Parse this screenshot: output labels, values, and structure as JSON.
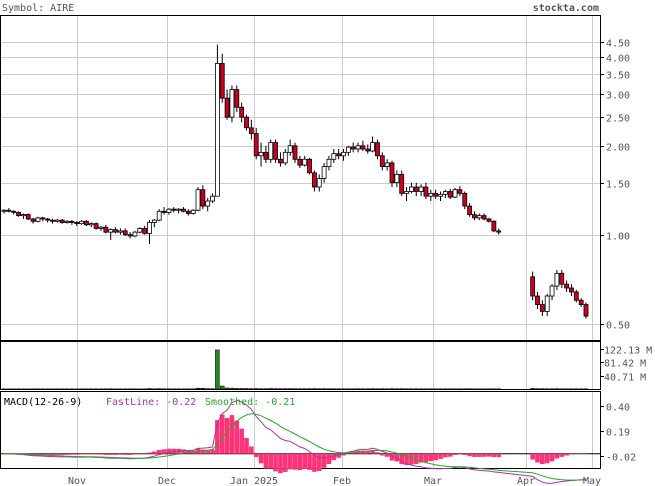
{
  "header": {
    "symbol_label": "Symbol: AIRE",
    "site": "stockta.com"
  },
  "colors": {
    "up_candle": "#ffffff",
    "down_candle": "#cc0022",
    "volume_bar": "#228822",
    "fastline": "#aa33aa",
    "smoothed": "#22aa22",
    "histogram": "#ff3377",
    "grid": "#cccccc",
    "frame": "#000000"
  },
  "chart_data": [
    {
      "type": "candlestick",
      "title": "",
      "scale": "log",
      "ylim": [
        0.44,
        5.5
      ],
      "y_ticks": [
        "4.50",
        "4.00",
        "3.50",
        "3.00",
        "2.50",
        "2.00",
        "1.50",
        "1.00",
        "0.50"
      ],
      "x_ticks": [
        "Nov",
        "Dec",
        "Jan 2025",
        "Feb",
        "Mar",
        "Apr",
        "May"
      ],
      "candles": [
        [
          1.2,
          1.22,
          1.18,
          1.21
        ],
        [
          1.21,
          1.23,
          1.19,
          1.2
        ],
        [
          1.2,
          1.21,
          1.17,
          1.19
        ],
        [
          1.19,
          1.2,
          1.15,
          1.16
        ],
        [
          1.16,
          1.18,
          1.13,
          1.17
        ],
        [
          1.17,
          1.18,
          1.12,
          1.13
        ],
        [
          1.13,
          1.14,
          1.09,
          1.11
        ],
        [
          1.11,
          1.15,
          1.1,
          1.14
        ],
        [
          1.14,
          1.15,
          1.11,
          1.13
        ],
        [
          1.13,
          1.14,
          1.1,
          1.12
        ],
        [
          1.12,
          1.13,
          1.09,
          1.11
        ],
        [
          1.11,
          1.13,
          1.1,
          1.12
        ],
        [
          1.12,
          1.13,
          1.09,
          1.1
        ],
        [
          1.1,
          1.12,
          1.09,
          1.11
        ],
        [
          1.11,
          1.12,
          1.08,
          1.1
        ],
        [
          1.1,
          1.11,
          1.07,
          1.09
        ],
        [
          1.09,
          1.12,
          1.08,
          1.11
        ],
        [
          1.11,
          1.12,
          1.07,
          1.08
        ],
        [
          1.08,
          1.1,
          1.06,
          1.09
        ],
        [
          1.09,
          1.1,
          1.04,
          1.05
        ],
        [
          1.05,
          1.07,
          1.03,
          1.06
        ],
        [
          1.06,
          1.08,
          1.01,
          1.02
        ],
        [
          1.02,
          1.05,
          0.96,
          1.04
        ],
        [
          1.04,
          1.06,
          1.01,
          1.02
        ],
        [
          1.02,
          1.05,
          1.0,
          1.03
        ],
        [
          1.03,
          1.05,
          0.99,
          1.0
        ],
        [
          1.0,
          1.02,
          0.97,
          0.99
        ],
        [
          0.99,
          1.03,
          0.98,
          1.02
        ],
        [
          1.02,
          1.06,
          1.01,
          1.05
        ],
        [
          1.05,
          1.07,
          1.0,
          1.01
        ],
        [
          1.01,
          1.12,
          0.93,
          1.1
        ],
        [
          1.1,
          1.13,
          1.06,
          1.12
        ],
        [
          1.12,
          1.22,
          1.11,
          1.2
        ],
        [
          1.2,
          1.24,
          1.17,
          1.19
        ],
        [
          1.19,
          1.23,
          1.17,
          1.22
        ],
        [
          1.22,
          1.24,
          1.19,
          1.21
        ],
        [
          1.21,
          1.23,
          1.18,
          1.22
        ],
        [
          1.22,
          1.24,
          1.19,
          1.2
        ],
        [
          1.2,
          1.22,
          1.16,
          1.18
        ],
        [
          1.18,
          1.22,
          1.17,
          1.21
        ],
        [
          1.21,
          1.45,
          1.2,
          1.42
        ],
        [
          1.42,
          1.47,
          1.22,
          1.25
        ],
        [
          1.25,
          1.33,
          1.2,
          1.3
        ],
        [
          1.3,
          1.38,
          1.28,
          1.35
        ],
        [
          1.35,
          4.4,
          1.7,
          3.8
        ],
        [
          3.8,
          4.1,
          2.8,
          2.9
        ],
        [
          2.9,
          3.1,
          2.45,
          2.5
        ],
        [
          2.5,
          3.2,
          2.4,
          3.1
        ],
        [
          3.1,
          3.2,
          2.6,
          2.7
        ],
        [
          2.7,
          2.8,
          2.4,
          2.5
        ],
        [
          2.5,
          2.55,
          2.25,
          2.3
        ],
        [
          2.3,
          2.45,
          2.1,
          2.2
        ],
        [
          2.2,
          2.3,
          1.8,
          1.85
        ],
        [
          1.85,
          2.05,
          1.7,
          1.9
        ],
        [
          1.9,
          2.0,
          1.75,
          1.8
        ],
        [
          1.8,
          2.1,
          1.75,
          2.05
        ],
        [
          2.05,
          2.1,
          1.75,
          1.8
        ],
        [
          1.8,
          1.9,
          1.7,
          1.75
        ],
        [
          1.75,
          1.95,
          1.72,
          1.9
        ],
        [
          1.9,
          2.1,
          1.85,
          2.0
        ],
        [
          2.0,
          2.05,
          1.75,
          1.8
        ],
        [
          1.8,
          1.85,
          1.68,
          1.72
        ],
        [
          1.72,
          1.85,
          1.7,
          1.8
        ],
        [
          1.8,
          1.82,
          1.6,
          1.62
        ],
        [
          1.62,
          1.65,
          1.4,
          1.45
        ],
        [
          1.45,
          1.6,
          1.4,
          1.55
        ],
        [
          1.55,
          1.75,
          1.5,
          1.7
        ],
        [
          1.7,
          1.85,
          1.65,
          1.8
        ],
        [
          1.8,
          1.95,
          1.75,
          1.88
        ],
        [
          1.88,
          1.95,
          1.8,
          1.85
        ],
        [
          1.85,
          1.95,
          1.78,
          1.9
        ],
        [
          1.9,
          2.0,
          1.85,
          1.98
        ],
        [
          1.98,
          2.05,
          1.9,
          1.95
        ],
        [
          1.95,
          2.05,
          1.9,
          2.0
        ],
        [
          2.0,
          2.08,
          1.92,
          1.95
        ],
        [
          1.95,
          2.02,
          1.88,
          1.92
        ],
        [
          1.92,
          2.15,
          1.9,
          2.05
        ],
        [
          2.05,
          2.1,
          1.8,
          1.85
        ],
        [
          1.85,
          1.9,
          1.65,
          1.7
        ],
        [
          1.7,
          1.8,
          1.65,
          1.75
        ],
        [
          1.75,
          1.78,
          1.45,
          1.5
        ],
        [
          1.5,
          1.65,
          1.45,
          1.6
        ],
        [
          1.6,
          1.65,
          1.35,
          1.38
        ],
        [
          1.38,
          1.45,
          1.3,
          1.4
        ],
        [
          1.4,
          1.5,
          1.38,
          1.45
        ],
        [
          1.45,
          1.5,
          1.35,
          1.4
        ],
        [
          1.4,
          1.48,
          1.35,
          1.45
        ],
        [
          1.45,
          1.5,
          1.32,
          1.35
        ],
        [
          1.35,
          1.42,
          1.3,
          1.38
        ],
        [
          1.38,
          1.42,
          1.32,
          1.35
        ],
        [
          1.35,
          1.4,
          1.3,
          1.37
        ],
        [
          1.37,
          1.42,
          1.33,
          1.4
        ],
        [
          1.4,
          1.43,
          1.32,
          1.34
        ],
        [
          1.34,
          1.44,
          1.33,
          1.42
        ],
        [
          1.42,
          1.46,
          1.35,
          1.38
        ],
        [
          1.38,
          1.4,
          1.22,
          1.25
        ],
        [
          1.25,
          1.28,
          1.15,
          1.17
        ],
        [
          1.17,
          1.2,
          1.12,
          1.14
        ],
        [
          1.14,
          1.18,
          1.12,
          1.16
        ],
        [
          1.16,
          1.18,
          1.12,
          1.13
        ],
        [
          1.13,
          1.14,
          1.1,
          1.11
        ],
        [
          1.11,
          1.12,
          1.02,
          1.03
        ],
        [
          1.03,
          1.05,
          1.0,
          1.02
        ],
        null,
        null,
        null,
        null,
        null,
        null,
        [
          0.72,
          0.75,
          0.6,
          0.62
        ],
        [
          0.62,
          0.64,
          0.56,
          0.58
        ],
        [
          0.58,
          0.6,
          0.53,
          0.55
        ],
        [
          0.55,
          0.63,
          0.53,
          0.62
        ],
        [
          0.62,
          0.68,
          0.6,
          0.67
        ],
        [
          0.67,
          0.76,
          0.65,
          0.74
        ],
        [
          0.74,
          0.76,
          0.66,
          0.68
        ],
        [
          0.68,
          0.7,
          0.64,
          0.66
        ],
        [
          0.66,
          0.68,
          0.62,
          0.64
        ],
        [
          0.64,
          0.65,
          0.59,
          0.6
        ],
        [
          0.6,
          0.61,
          0.57,
          0.58
        ],
        [
          0.58,
          0.59,
          0.52,
          0.53
        ]
      ]
    },
    {
      "type": "bar",
      "name": "volume",
      "y_ticks": [
        "122.13 M",
        "81.42 M",
        "40.71 M"
      ],
      "ylim": [
        0,
        142
      ],
      "values": [
        0.6,
        0.5,
        0.5,
        0.6,
        0.5,
        0.5,
        0.5,
        0.6,
        0.5,
        0.5,
        0.5,
        0.6,
        0.5,
        0.5,
        0.5,
        0.5,
        0.6,
        0.5,
        0.5,
        0.6,
        0.5,
        0.6,
        0.9,
        0.6,
        0.5,
        0.5,
        0.6,
        0.6,
        0.5,
        0.7,
        1.4,
        0.8,
        1.1,
        0.8,
        0.7,
        0.6,
        0.6,
        0.6,
        0.7,
        0.7,
        2.5,
        2.2,
        1.2,
        1.0,
        118.0,
        9.0,
        3.0,
        2.5,
        1.8,
        1.5,
        1.4,
        1.2,
        1.4,
        1.1,
        1.1,
        1.5,
        1.3,
        1.1,
        1.2,
        1.3,
        1.1,
        1.0,
        0.9,
        1.1,
        1.3,
        1.0,
        1.1,
        1.0,
        0.9,
        0.9,
        0.8,
        0.9,
        0.8,
        0.9,
        0.8,
        0.8,
        1.0,
        0.9,
        1.0,
        0.8,
        1.1,
        0.9,
        1.0,
        0.8,
        0.8,
        0.8,
        0.7,
        0.8,
        0.7,
        0.7,
        0.7,
        0.7,
        0.7,
        0.7,
        0.7,
        0.9,
        0.9,
        0.7,
        0.7,
        0.7,
        0.7,
        0.8,
        0.6,
        0,
        0,
        0,
        0,
        0,
        0,
        1.6,
        1.2,
        1.0,
        0.9,
        0.8,
        1.0,
        0.8,
        0.7,
        0.7,
        0.7,
        0.6,
        0.8
      ]
    },
    {
      "type": "line",
      "name": "macd",
      "indicator_label": "MACD(12-26-9)",
      "fastline_label": "FastLine: -0.22",
      "smoothed_label": "Smoothed: -0.21",
      "y_ticks": [
        "0.40",
        "0.19",
        "-0.02"
      ],
      "ylim": [
        -0.12,
        0.52
      ]
    }
  ]
}
